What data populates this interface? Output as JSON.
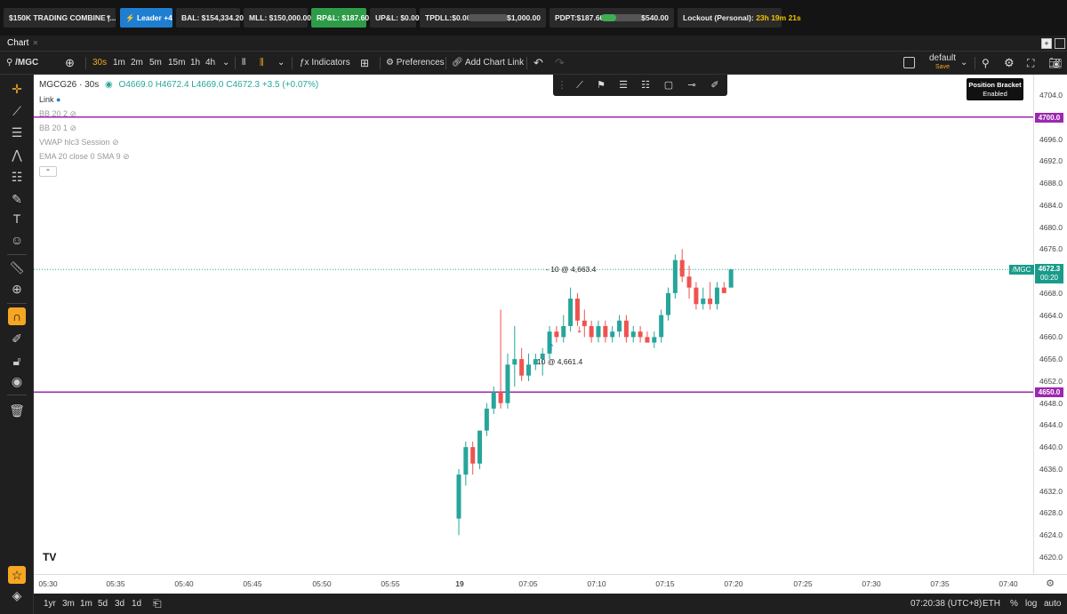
{
  "topbar": {
    "account": "$150K TRADING COMBINE |...",
    "leader": "Leader +4",
    "bal": "BAL: $154,334.20",
    "mll": "MLL: $150,000.00",
    "rpl": "RP&L: $187.60",
    "upl": "UP&L: $0.00",
    "tpdll_label": "TPDLL:$0.00",
    "tpdll_max": "$1,000.00",
    "tpdll_progress": 0,
    "pdpt_label": "PDPT:$187.60",
    "pdpt_max": "$540.00",
    "pdpt_progress": 0.35,
    "lockout_label": "Lockout (Personal):",
    "lockout_time": "23h 19m 21s"
  },
  "tabs": {
    "chart": "Chart"
  },
  "toolbar": {
    "symbol": "/MGC",
    "intervals": [
      "30s",
      "1m",
      "2m",
      "5m",
      "15m",
      "1h",
      "4h"
    ],
    "active_interval": "30s",
    "indicators": "Indicators",
    "preferences": "Preferences",
    "add_chart_link": "Add Chart Link",
    "layout_name": "default",
    "layout_save": "Save"
  },
  "chart_header": {
    "title": "MGCG26 · 30s",
    "open": "O4669.0",
    "high": "H4672.4",
    "low": "L4669.0",
    "close": "C4672.3",
    "change": "+3.5 (+0.07%)",
    "link": "Link"
  },
  "studies": [
    "BB 20 2",
    "BB 20 1",
    "VWAP hlc3 Session",
    "EMA 20 close 0 SMA 9"
  ],
  "position_bracket": {
    "line1": "Position Bracket",
    "line2": "Enabled"
  },
  "price_labels": {
    "upper_line": "4700.0",
    "lower_line": "4650.0",
    "current_symbol": "/MGC",
    "current_price": "4672.3",
    "countdown": "00:20"
  },
  "annotations": {
    "sell": "- 10 @ 4,663.4",
    "buy": "10 @ 4,661.4"
  },
  "bottombar": {
    "ranges": [
      "1yr",
      "3m",
      "1m",
      "5d",
      "3d",
      "1d"
    ],
    "clock": "07:20:38 (UTC+8)",
    "session": "ETH",
    "percent": "%",
    "log": "log",
    "auto": "auto"
  },
  "colors": {
    "up": "#26a69a",
    "down": "#ef5350",
    "level": "#9c27b0",
    "accent": "#f5a623"
  },
  "chart_data": {
    "type": "candlestick",
    "y_ticks": [
      4704.0,
      4700.0,
      4696.0,
      4692.0,
      4688.0,
      4684.0,
      4680.0,
      4676.0,
      4672.0,
      4668.0,
      4664.0,
      4660.0,
      4656.0,
      4652.0,
      4648.0,
      4644.0,
      4640.0,
      4636.0,
      4632.0,
      4628.0,
      4624.0,
      4620.0
    ],
    "x_ticks": [
      "05:30",
      "05:35",
      "05:40",
      "05:45",
      "05:50",
      "05:55",
      "19",
      "07:05",
      "07:10",
      "07:15",
      "07:20",
      "07:25",
      "07:30",
      "07:35",
      "07:40"
    ],
    "horizontal_levels": [
      4700.0,
      4650.0
    ],
    "current_price": 4672.3,
    "candles": [
      [
        4627,
        4636,
        4624,
        4635
      ],
      [
        4635,
        4641,
        4633,
        4640
      ],
      [
        4640,
        4641,
        4635,
        4637
      ],
      [
        4637,
        4643,
        4636,
        4643
      ],
      [
        4643,
        4648,
        4642,
        4647
      ],
      [
        4647,
        4651,
        4646,
        4650
      ],
      [
        4650,
        4665,
        4647,
        4648
      ],
      [
        4648,
        4657,
        4647,
        4655
      ],
      [
        4655,
        4662,
        4651,
        4656
      ],
      [
        4656,
        4658,
        4652,
        4653
      ],
      [
        4653,
        4657,
        4652,
        4655
      ],
      [
        4655,
        4657,
        4654,
        4656
      ],
      [
        4656,
        4658,
        4653,
        4657
      ],
      [
        4657,
        4662,
        4656,
        4661
      ],
      [
        4661,
        4662,
        4659,
        4660
      ],
      [
        4660,
        4664,
        4659,
        4662
      ],
      [
        4662,
        4669,
        4661,
        4667
      ],
      [
        4667,
        4668,
        4662,
        4663
      ],
      [
        4663,
        4665,
        4660,
        4662
      ],
      [
        4662,
        4663,
        4659,
        4660
      ],
      [
        4660,
        4663,
        4659,
        4662
      ],
      [
        4662,
        4663,
        4659,
        4660
      ],
      [
        4660,
        4662,
        4659,
        4661
      ],
      [
        4661,
        4664,
        4660,
        4663
      ],
      [
        4663,
        4664,
        4659,
        4660
      ],
      [
        4660,
        4662,
        4659,
        4661
      ],
      [
        4661,
        4662,
        4659,
        4660
      ],
      [
        4660,
        4661,
        4659,
        4659
      ],
      [
        4659,
        4661,
        4658,
        4660
      ],
      [
        4660,
        4665,
        4659,
        4664
      ],
      [
        4664,
        4669,
        4663,
        4668
      ],
      [
        4668,
        4675,
        4667,
        4674
      ],
      [
        4674,
        4676,
        4670,
        4671
      ],
      [
        4671,
        4673,
        4667,
        4669
      ],
      [
        4669,
        4670,
        4665,
        4666
      ],
      [
        4666,
        4669,
        4665,
        4667
      ],
      [
        4667,
        4670,
        4665,
        4666
      ],
      [
        4666,
        4670,
        4665,
        4669
      ],
      [
        4669,
        4670,
        4668,
        4668
      ],
      [
        4669,
        4672.4,
        4669,
        4672.3
      ]
    ]
  }
}
